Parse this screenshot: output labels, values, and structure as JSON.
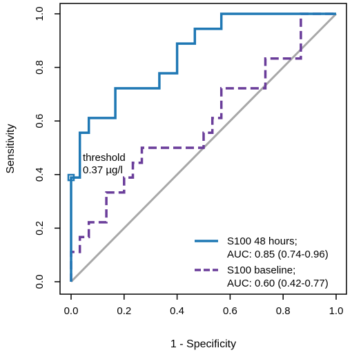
{
  "chart_data": {
    "type": "line",
    "title": "",
    "xlabel": "1 - Specificity",
    "ylabel": "Sensitivity",
    "xlim": [
      0,
      1
    ],
    "ylim": [
      0,
      1
    ],
    "xticks": [
      "0.0",
      "0.2",
      "0.4",
      "0.6",
      "0.8",
      "1.0"
    ],
    "yticks": [
      "0.0",
      "0.2",
      "0.4",
      "0.6",
      "0.8",
      "1.0"
    ],
    "grid": false,
    "legend_position": "bottom-right",
    "series": [
      {
        "name": "S100 48 hours;",
        "auc_label": "AUC: 0.85 (0.74-0.96)",
        "color": "#1f78b4",
        "style": "solid",
        "points": [
          [
            0,
            0
          ],
          [
            0,
            0.389
          ],
          [
            0.033,
            0.389
          ],
          [
            0.033,
            0.556
          ],
          [
            0.067,
            0.556
          ],
          [
            0.067,
            0.611
          ],
          [
            0.167,
            0.611
          ],
          [
            0.167,
            0.722
          ],
          [
            0.333,
            0.722
          ],
          [
            0.333,
            0.778
          ],
          [
            0.4,
            0.778
          ],
          [
            0.4,
            0.889
          ],
          [
            0.467,
            0.889
          ],
          [
            0.467,
            0.944
          ],
          [
            0.567,
            0.944
          ],
          [
            0.567,
            1.0
          ],
          [
            1.0,
            1.0
          ]
        ]
      },
      {
        "name": "S100 baseline;",
        "auc_label": "AUC: 0.60 (0.42-0.77)",
        "color": "#6a3d9a",
        "style": "dashed",
        "points": [
          [
            0,
            0
          ],
          [
            0,
            0.111
          ],
          [
            0.033,
            0.111
          ],
          [
            0.033,
            0.167
          ],
          [
            0.067,
            0.167
          ],
          [
            0.067,
            0.222
          ],
          [
            0.133,
            0.222
          ],
          [
            0.133,
            0.333
          ],
          [
            0.2,
            0.333
          ],
          [
            0.2,
            0.389
          ],
          [
            0.233,
            0.389
          ],
          [
            0.233,
            0.444
          ],
          [
            0.267,
            0.444
          ],
          [
            0.267,
            0.5
          ],
          [
            0.5,
            0.5
          ],
          [
            0.5,
            0.556
          ],
          [
            0.533,
            0.556
          ],
          [
            0.533,
            0.611
          ],
          [
            0.567,
            0.611
          ],
          [
            0.567,
            0.722
          ],
          [
            0.733,
            0.722
          ],
          [
            0.733,
            0.833
          ],
          [
            0.867,
            0.833
          ],
          [
            0.867,
            1.0
          ],
          [
            1.0,
            1.0
          ]
        ]
      }
    ],
    "reference_line": {
      "from": [
        0,
        0
      ],
      "to": [
        1,
        1
      ],
      "color": "#a8a8a8"
    },
    "threshold": {
      "x": 0.0,
      "y": 0.389,
      "label_line1": "threshold",
      "label_line2": "0.37 µg/l",
      "color": "#1f78b4"
    }
  }
}
